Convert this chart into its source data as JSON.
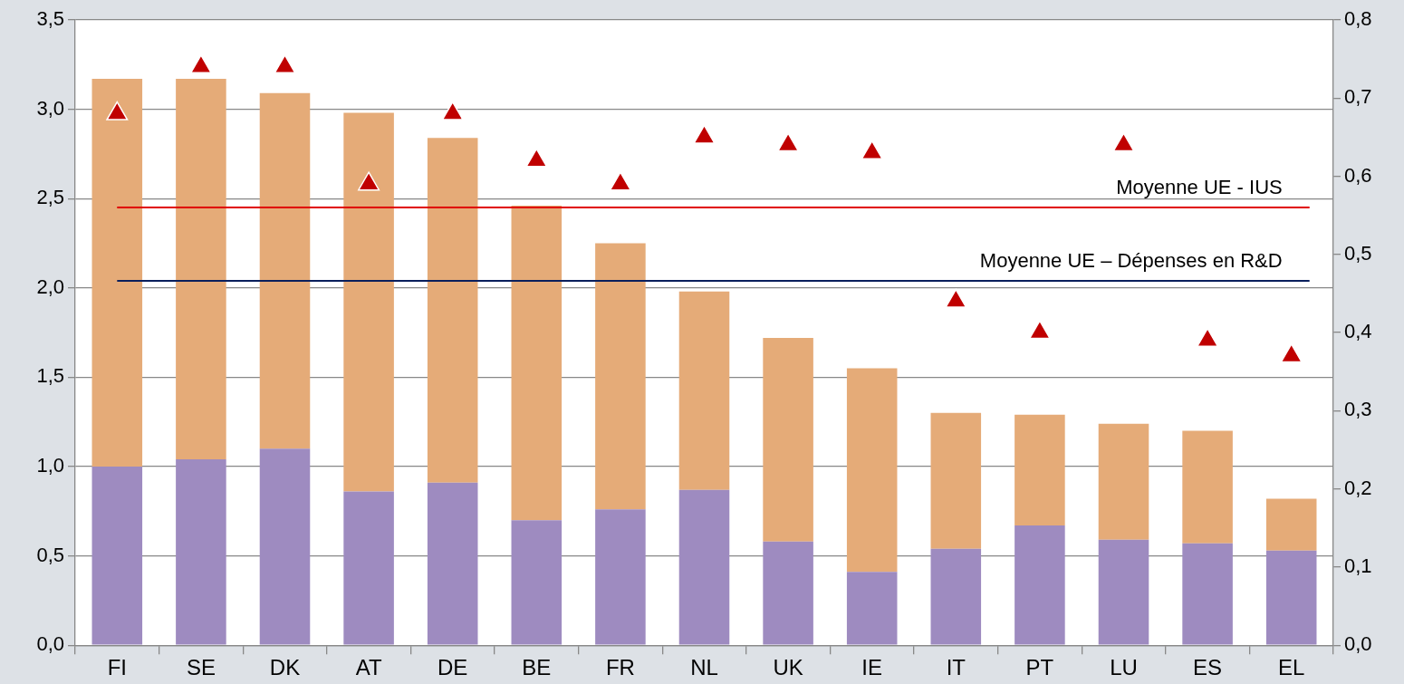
{
  "chart_data": {
    "type": "bar",
    "stacked": true,
    "categories": [
      "FI",
      "SE",
      "DK",
      "AT",
      "DE",
      "BE",
      "FR",
      "NL",
      "UK",
      "IE",
      "IT",
      "PT",
      "LU",
      "ES",
      "EL"
    ],
    "series": [
      {
        "color": "#9e8bc0",
        "values": [
          1.0,
          1.04,
          1.1,
          0.86,
          0.91,
          0.7,
          0.76,
          0.87,
          0.58,
          0.41,
          0.54,
          0.67,
          0.59,
          0.57,
          0.53
        ]
      },
      {
        "color": "#e5ab78",
        "values": [
          2.17,
          2.13,
          1.99,
          2.12,
          1.93,
          1.76,
          1.49,
          1.11,
          1.14,
          1.14,
          0.76,
          0.62,
          0.65,
          0.63,
          0.29
        ]
      },
      {
        "type": "scatter",
        "axis": "y2",
        "marker": "triangle",
        "color": "#c00000",
        "x": [
          "FI",
          "SE",
          "DK",
          "AT",
          "DE",
          "BE",
          "FR",
          "NL",
          "UK",
          "IE",
          "IT",
          "PT",
          "LU",
          "ES",
          "EL"
        ],
        "values": [
          0.68,
          0.74,
          0.74,
          0.59,
          0.68,
          0.62,
          0.59,
          0.65,
          0.64,
          0.63,
          0.44,
          0.4,
          0.64,
          0.39,
          0.37
        ]
      }
    ],
    "ylim": [
      0,
      3.5
    ],
    "yticks": [
      {
        "value": 0,
        "label": "0,0"
      },
      {
        "value": 0.5,
        "label": "0,5"
      },
      {
        "value": 1,
        "label": "1,0"
      },
      {
        "value": 1.5,
        "label": "1,5"
      },
      {
        "value": 2,
        "label": "2,0"
      },
      {
        "value": 2.5,
        "label": "2,5"
      },
      {
        "value": 3,
        "label": "3,0"
      },
      {
        "value": 3.5,
        "label": "3,5"
      }
    ],
    "y2lim": [
      0,
      0.8
    ],
    "y2ticks": [
      {
        "value": 0,
        "label": "0,0"
      },
      {
        "value": 0.1,
        "label": "0,1"
      },
      {
        "value": 0.2,
        "label": "0,2"
      },
      {
        "value": 0.3,
        "label": "0,3"
      },
      {
        "value": 0.4,
        "label": "0,4"
      },
      {
        "value": 0.5,
        "label": "0,5"
      },
      {
        "value": 0.6,
        "label": "0,6"
      },
      {
        "value": 0.7,
        "label": "0,7"
      },
      {
        "value": 0.8,
        "label": "0,8"
      }
    ],
    "ref_lines": [
      {
        "axis": "y2",
        "value": 0.56,
        "label": "Moyenne UE - IUS",
        "color": "#e00000"
      },
      {
        "axis": "y",
        "value": 2.04,
        "label": "Moyenne UE – Dépenses en R&D",
        "color": "#0a1f5c"
      }
    ],
    "grid": "y",
    "legend": false
  }
}
